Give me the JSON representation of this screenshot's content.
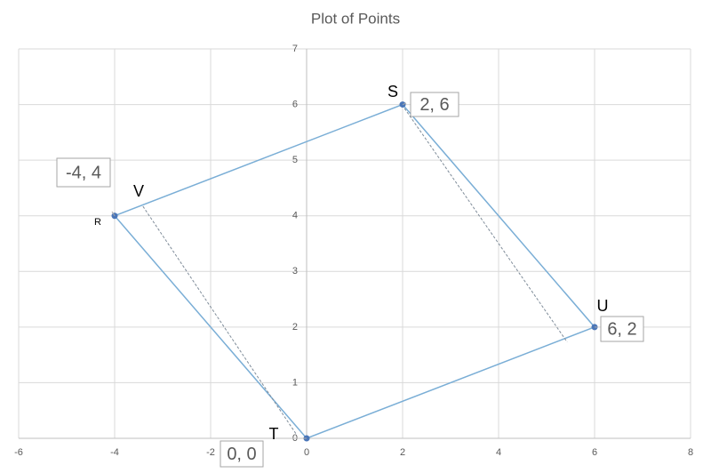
{
  "chart_data": {
    "type": "scatter",
    "title": "Plot of Points",
    "xlim": [
      -6,
      8
    ],
    "ylim": [
      0,
      7
    ],
    "xticks": [
      -6,
      -4,
      -2,
      0,
      2,
      4,
      6,
      8
    ],
    "yticks": [
      0,
      1,
      2,
      3,
      4,
      5,
      6,
      7
    ],
    "grid": true,
    "series": [
      {
        "color": "#7aaed6",
        "marker_color": "#4a76b8",
        "closed": true,
        "x": [
          2,
          6,
          0,
          -4
        ],
        "values": [
          6,
          2,
          0,
          4
        ],
        "value_labels": [
          "2, 6",
          "6, 2",
          "0, 0",
          "-4, 4"
        ]
      },
      {
        "color": "#7f8c99",
        "dashed": true,
        "x": [
          -3.41,
          -0.22
        ],
        "values": [
          4.17,
          0.08
        ]
      },
      {
        "color": "#7f8c99",
        "dashed": true,
        "x": [
          2.04,
          5.43
        ],
        "values": [
          5.93,
          1.73
        ]
      }
    ],
    "annotations": [
      "S",
      "U",
      "T",
      "V",
      "R"
    ]
  }
}
